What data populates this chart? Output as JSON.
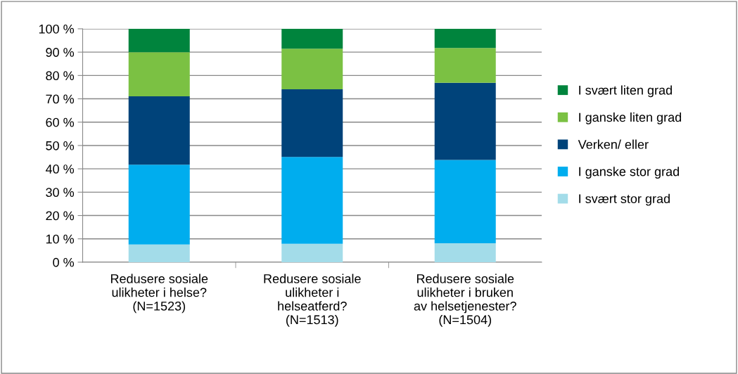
{
  "chart_data": {
    "type": "bar",
    "stacked": true,
    "categories": [
      "Redusere sosiale ulikheter i helse? (N=1523)",
      "Redusere sosiale ulikheter i helseatferd? (N=1513)",
      "Redusere sosiale ulikheter i bruken av helsetjenester? (N=1504)"
    ],
    "series": [
      {
        "name": "I svært stor grad",
        "color": "#a3dce9",
        "values": [
          7.6,
          7.9,
          8.1
        ]
      },
      {
        "name": "I ganske stor grad",
        "color": "#00adee",
        "values": [
          34.2,
          37.2,
          35.7
        ]
      },
      {
        "name": "Verken/ eller",
        "color": "#00437a",
        "values": [
          29.3,
          29.0,
          33.1
        ]
      },
      {
        "name": "I ganske liten grad",
        "color": "#7bc143",
        "values": [
          18.9,
          17.4,
          14.9
        ]
      },
      {
        "name": "I svært liten grad",
        "color": "#00843d",
        "values": [
          10.0,
          8.5,
          8.2
        ]
      }
    ],
    "ylim": [
      0,
      100
    ],
    "yticks": [
      {
        "value": 0,
        "label": "0 %"
      },
      {
        "value": 10,
        "label": "10 %"
      },
      {
        "value": 20,
        "label": "20 %"
      },
      {
        "value": 30,
        "label": "30 %"
      },
      {
        "value": 40,
        "label": "40 %"
      },
      {
        "value": 50,
        "label": "50 %"
      },
      {
        "value": 60,
        "label": "60 %"
      },
      {
        "value": 70,
        "label": "70 %"
      },
      {
        "value": 80,
        "label": "80 %"
      },
      {
        "value": 90,
        "label": "90 %"
      },
      {
        "value": 100,
        "label": "100 %"
      }
    ],
    "grid": "y",
    "legend": "right"
  }
}
